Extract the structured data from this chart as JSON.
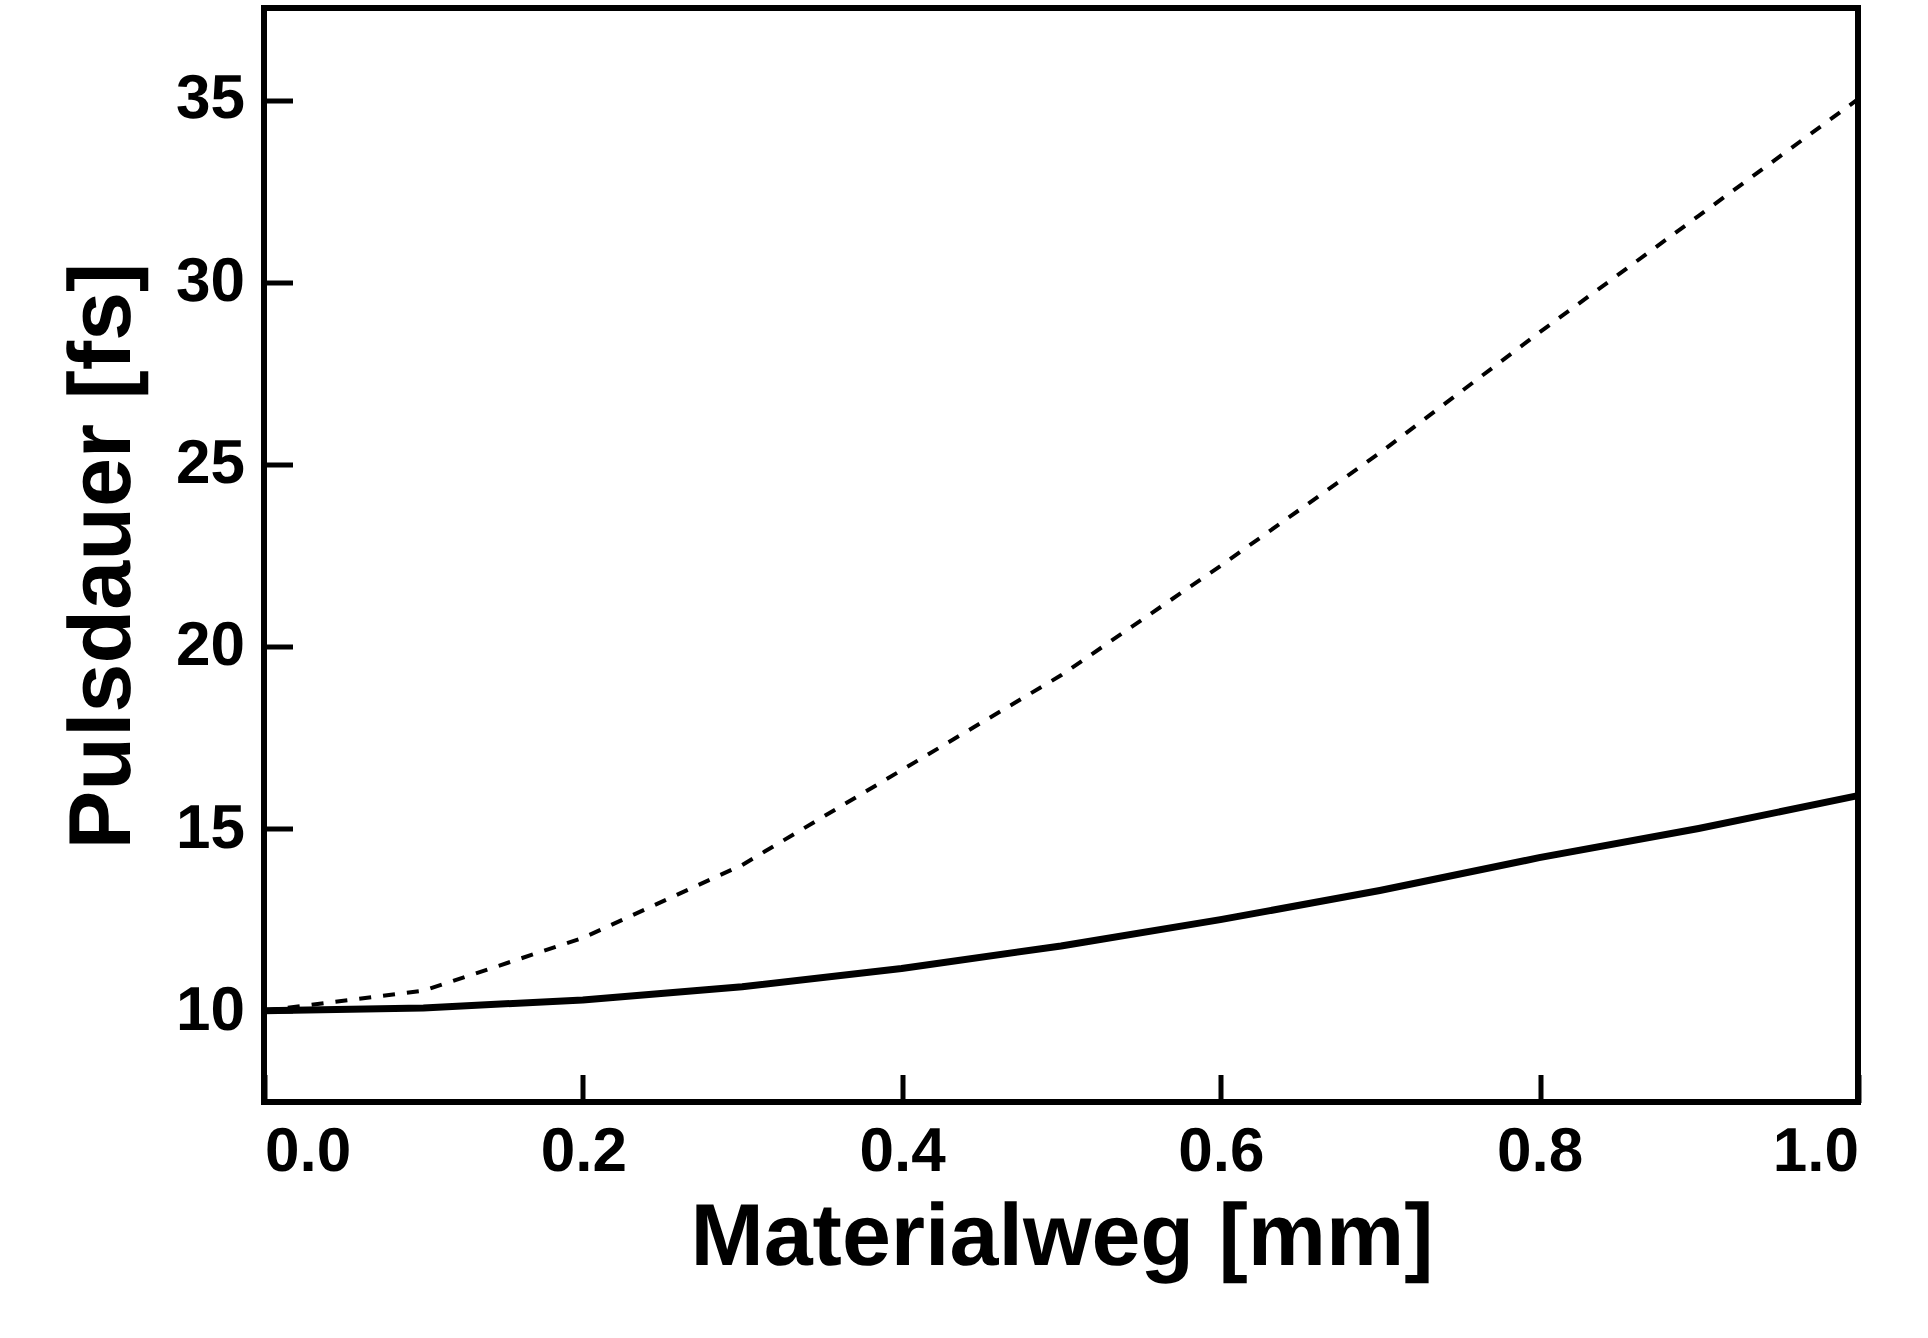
{
  "chart_data": {
    "type": "line",
    "xlabel": "Materialweg [mm]",
    "ylabel": "Pulsdauer [fs]",
    "x": [
      0,
      0.1,
      0.2,
      0.3,
      0.4,
      0.5,
      0.6,
      0.7,
      0.8,
      0.9,
      1.0
    ],
    "series": [
      {
        "color": "#000000",
        "line_style": "solid",
        "values": [
          10,
          10.08,
          10.3,
          10.66,
          11.16,
          11.78,
          12.5,
          13.3,
          14.2,
          15.0,
          15.9
        ]
      },
      {
        "color": "#000000",
        "line_style": "dashed",
        "values": [
          10,
          10.55,
          12.0,
          14.0,
          16.6,
          19.2,
          22.2,
          25.3,
          28.6,
          31.8,
          35.0
        ]
      }
    ],
    "xlim": [
      0,
      1.0
    ],
    "ylim": [
      7.5,
      37.5
    ],
    "xticks": [
      {
        "value": 0,
        "label": "0.0"
      },
      0.2,
      0.4,
      0.6,
      0.8,
      {
        "value": 1,
        "label": "1.0"
      }
    ],
    "yticks": [
      10,
      15,
      20,
      25,
      30,
      35
    ],
    "grid": false,
    "marker": "none"
  }
}
